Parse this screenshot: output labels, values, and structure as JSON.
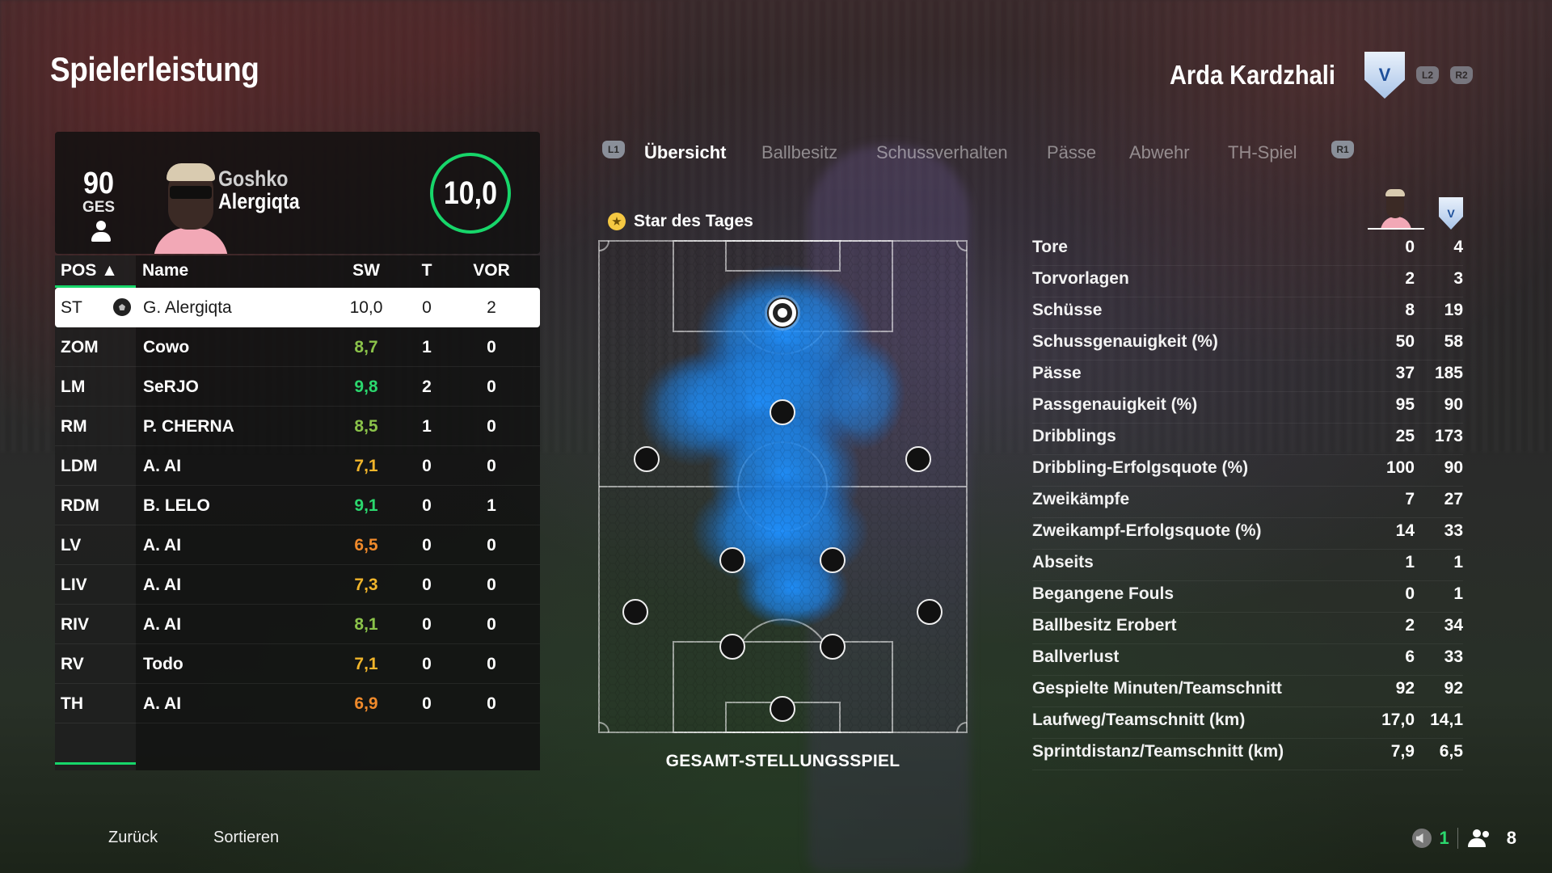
{
  "screen": {
    "title": "Spielerleistung",
    "team_name": "Arda Kardzhali",
    "team_crest_icon": "team-crest-icon",
    "hint_prev_team": "L2",
    "hint_next_team": "R2"
  },
  "player_card": {
    "overall": "90",
    "overall_label": "GES",
    "first_name": "Goshko",
    "last_name": "Alergiqta",
    "match_rating": "10,0",
    "rating_color": "#17d66a"
  },
  "table": {
    "headers": {
      "pos": "POS ▲",
      "name": "Name",
      "sw": "SW",
      "t": "T",
      "vor": "VOR"
    },
    "rows": [
      {
        "pos": "ST",
        "name": "G. Alergiqta",
        "sw": "10,0",
        "t": "0",
        "vor": "2",
        "selected": true,
        "icon": "ball-icon"
      },
      {
        "pos": "ZOM",
        "name": "Cowo",
        "sw": "8,7",
        "t": "1",
        "vor": "0",
        "color": "#8bc34a"
      },
      {
        "pos": "LM",
        "name": "SeRJO",
        "sw": "9,8",
        "t": "2",
        "vor": "0",
        "color": "#2bd86e"
      },
      {
        "pos": "RM",
        "name": "P. CHERNA",
        "sw": "8,5",
        "t": "1",
        "vor": "0",
        "color": "#8bc34a"
      },
      {
        "pos": "LDM",
        "name": "A. AI",
        "sw": "7,1",
        "t": "0",
        "vor": "0",
        "color": "#f1b52b"
      },
      {
        "pos": "RDM",
        "name": "B. LELO",
        "sw": "9,1",
        "t": "0",
        "vor": "1",
        "color": "#2bd86e"
      },
      {
        "pos": "LV",
        "name": "A. AI",
        "sw": "6,5",
        "t": "0",
        "vor": "0",
        "color": "#f08a2b"
      },
      {
        "pos": "LIV",
        "name": "A. AI",
        "sw": "7,3",
        "t": "0",
        "vor": "0",
        "color": "#f1b52b"
      },
      {
        "pos": "RIV",
        "name": "A. AI",
        "sw": "8,1",
        "t": "0",
        "vor": "0",
        "color": "#8bc34a"
      },
      {
        "pos": "RV",
        "name": "Todo",
        "sw": "7,1",
        "t": "0",
        "vor": "0",
        "color": "#f1b52b"
      },
      {
        "pos": "TH",
        "name": "A. AI",
        "sw": "6,9",
        "t": "0",
        "vor": "0",
        "color": "#f08a2b"
      }
    ]
  },
  "tabs": {
    "hint_left": "L1",
    "hint_right": "R1",
    "items": [
      "Übersicht",
      "Ballbesitz",
      "Schussverhalten",
      "Pässe",
      "Abwehr",
      "TH-Spiel"
    ],
    "active_index": 0
  },
  "pitch": {
    "star_label": "Star des Tages",
    "caption": "GESAMT-STELLUNGSSPIEL",
    "heat_color": "#1e90ff",
    "highlight_icon": "ball-icon"
  },
  "stats": {
    "rows": [
      {
        "label": "Tore",
        "player": "0",
        "team": "4"
      },
      {
        "label": "Torvorlagen",
        "player": "2",
        "team": "3"
      },
      {
        "label": "Schüsse",
        "player": "8",
        "team": "19"
      },
      {
        "label": "Schussgenauigkeit (%)",
        "player": "50",
        "team": "58"
      },
      {
        "label": "Pässe",
        "player": "37",
        "team": "185"
      },
      {
        "label": "Passgenauigkeit (%)",
        "player": "95",
        "team": "90"
      },
      {
        "label": "Dribblings",
        "player": "25",
        "team": "173"
      },
      {
        "label": "Dribbling-Erfolgsquote (%)",
        "player": "100",
        "team": "90"
      },
      {
        "label": "Zweikämpfe",
        "player": "7",
        "team": "27"
      },
      {
        "label": "Zweikampf-Erfolgsquote (%)",
        "player": "14",
        "team": "33"
      },
      {
        "label": "Abseits",
        "player": "1",
        "team": "1"
      },
      {
        "label": "Begangene Fouls",
        "player": "0",
        "team": "1"
      },
      {
        "label": "Ballbesitz Erobert",
        "player": "2",
        "team": "34"
      },
      {
        "label": "Ballverlust",
        "player": "6",
        "team": "33"
      },
      {
        "label": "Gespielte Minuten/Teamschnitt",
        "player": "92",
        "team": "92"
      },
      {
        "label": "Laufweg/Teamschnitt (km)",
        "player": "17,0",
        "team": "14,1"
      },
      {
        "label": "Sprintdistanz/Teamschnitt (km)",
        "player": "7,9",
        "team": "6,5"
      }
    ]
  },
  "footer": {
    "back_label": "Zurück",
    "sort_label": "Sortieren",
    "voice_count": "1",
    "people_count": "8"
  }
}
